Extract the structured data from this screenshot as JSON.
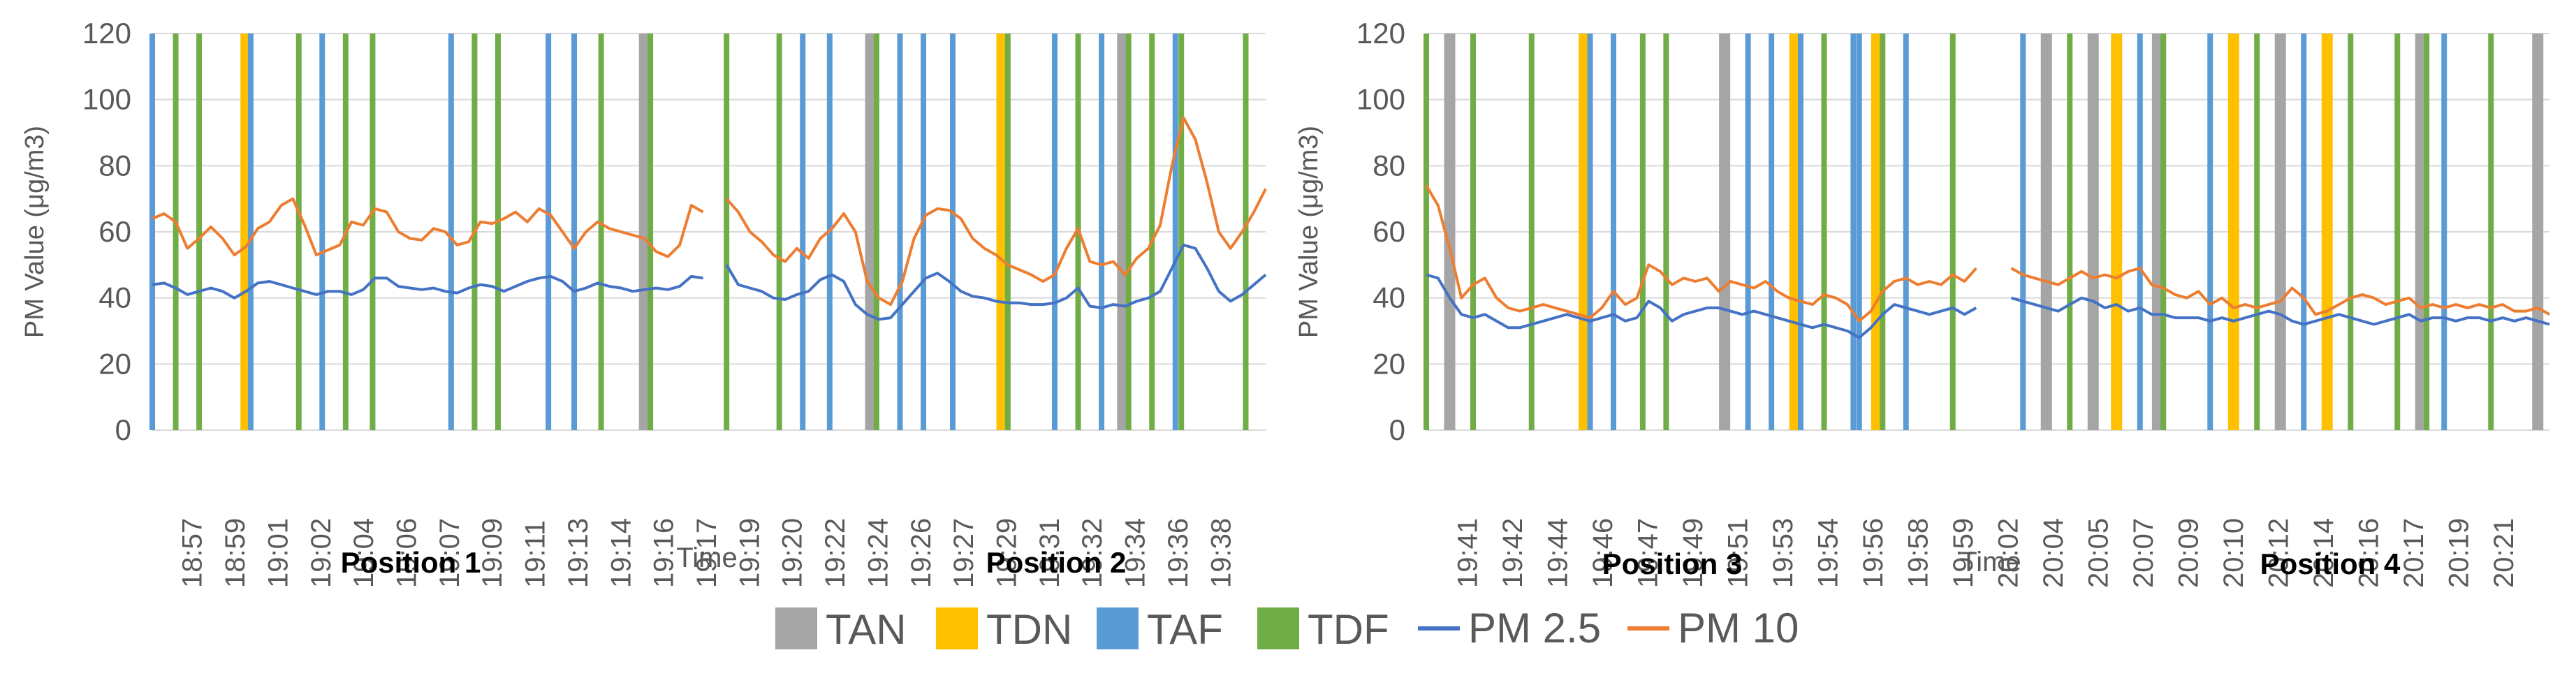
{
  "colors": {
    "TAN": "#a5a5a5",
    "TDN": "#ffc000",
    "TAF": "#5b9bd5",
    "TDF": "#70ad47",
    "PM 2.5": "#4472c4",
    "PM 10": "#ed7d31",
    "grid": "#d9d9d9",
    "text": "#595959"
  },
  "legend": [
    "TAN",
    "TDN",
    "TAF",
    "TDF",
    "PM 2.5",
    "PM 10"
  ],
  "chart_data": [
    {
      "type": "line",
      "ylabel": "PM Value (μg/m3)",
      "xlabel": "Time",
      "ylim": [
        0,
        120
      ],
      "yticks": [
        0,
        20,
        40,
        60,
        80,
        100,
        120
      ],
      "grid": true,
      "x_labels": [
        "18:57",
        "18:59",
        "19:01",
        "19:02",
        "19:04",
        "19:06",
        "19:07",
        "19:09",
        "19:11",
        "19:13",
        "19:14",
        "19:16",
        "19:17",
        "19:19",
        "19:20",
        "19:22",
        "19:24",
        "19:26",
        "19:27",
        "19:29",
        "19:31",
        "19:32",
        "19:34",
        "19:36",
        "19:38"
      ],
      "positions": [
        {
          "label": "Position 1",
          "x_range": [
            0,
            46
          ]
        },
        {
          "label": "Position 2",
          "x_range": [
            47,
            94
          ]
        }
      ],
      "events": [
        {
          "type": "TAF",
          "x": 0
        },
        {
          "type": "TDF",
          "x": 2
        },
        {
          "type": "TDF",
          "x": 4
        },
        {
          "type": "TDN",
          "x": 8
        },
        {
          "type": "TAF",
          "x": 8.4
        },
        {
          "type": "TDF",
          "x": 12.5
        },
        {
          "type": "TAF",
          "x": 14.5
        },
        {
          "type": "TDF",
          "x": 16.5
        },
        {
          "type": "TDF",
          "x": 18.8
        },
        {
          "type": "TAF",
          "x": 25.5
        },
        {
          "type": "TDF",
          "x": 27.5
        },
        {
          "type": "TDF",
          "x": 29.5
        },
        {
          "type": "TAF",
          "x": 33.8
        },
        {
          "type": "TAF",
          "x": 36
        },
        {
          "type": "TDF",
          "x": 38.3
        },
        {
          "type": "TAN",
          "x": 42
        },
        {
          "type": "TDF",
          "x": 42.5
        },
        {
          "type": "TDF",
          "x": 49
        },
        {
          "type": "TDF",
          "x": 53.5
        },
        {
          "type": "TAF",
          "x": 55.5
        },
        {
          "type": "TAF",
          "x": 57.8
        },
        {
          "type": "TAN",
          "x": 61.3
        },
        {
          "type": "TDF",
          "x": 61.8
        },
        {
          "type": "TAF",
          "x": 63.8
        },
        {
          "type": "TAF",
          "x": 65.8
        },
        {
          "type": "TAF",
          "x": 68.3
        },
        {
          "type": "TDN",
          "x": 72.5
        },
        {
          "type": "TDF",
          "x": 73
        },
        {
          "type": "TAF",
          "x": 77
        },
        {
          "type": "TDF",
          "x": 79
        },
        {
          "type": "TAF",
          "x": 81
        },
        {
          "type": "TAN",
          "x": 82.8
        },
        {
          "type": "TDF",
          "x": 83.3
        },
        {
          "type": "TDF",
          "x": 85.3
        },
        {
          "type": "TAF",
          "x": 87.3
        },
        {
          "type": "TDF",
          "x": 87.8
        },
        {
          "type": "TDF",
          "x": 93.3
        }
      ],
      "series": [
        {
          "name": "PM 2.5",
          "values": [
            44,
            44.5,
            43,
            41,
            42,
            43,
            42,
            40,
            42,
            44.5,
            45,
            44,
            43,
            42,
            41,
            42,
            42,
            41,
            42.5,
            46,
            46,
            43.5,
            43,
            42.5,
            43,
            42,
            41.5,
            43,
            44,
            43.5,
            42,
            43.5,
            45,
            46,
            46.5,
            45,
            42,
            43,
            44.5,
            43.5,
            43,
            42,
            42.5,
            43,
            42.5,
            43.5,
            46.5,
            46,
            null,
            50,
            44,
            43,
            42,
            40,
            39.5,
            41,
            42,
            45.5,
            47,
            45,
            38,
            35,
            33.5,
            34,
            38,
            42,
            46,
            47.5,
            45,
            42,
            40.5,
            40,
            39,
            38.5,
            38.5,
            38,
            38,
            38.5,
            40,
            43,
            37.5,
            37,
            38,
            37.5,
            39,
            40,
            42,
            49,
            56,
            55,
            49,
            42,
            39,
            41,
            44,
            47
          ]
        },
        {
          "name": "PM 10",
          "values": [
            64,
            65.5,
            63,
            55,
            58,
            61.5,
            58,
            53,
            55.5,
            61,
            63,
            68,
            70,
            62,
            53,
            54.5,
            56,
            63,
            62,
            67,
            66,
            60,
            58,
            57.5,
            61,
            60,
            56,
            57,
            63,
            62.5,
            64,
            66,
            63,
            67,
            65,
            60,
            55,
            60,
            63,
            61,
            60,
            59,
            58,
            54,
            52.5,
            56,
            68,
            66,
            null,
            70,
            66,
            60,
            57,
            53,
            51,
            55,
            52,
            58,
            61,
            65.5,
            60,
            45,
            40,
            38,
            45,
            58,
            65,
            67,
            66.5,
            64,
            58,
            55,
            53,
            50,
            48.5,
            47,
            45,
            47,
            55,
            61,
            51,
            50,
            51,
            47,
            52,
            55,
            62,
            80,
            94.5,
            88,
            75,
            60,
            55,
            60,
            66,
            73
          ]
        }
      ]
    },
    {
      "type": "line",
      "ylabel": "PM Value (μg/m3)",
      "xlabel": "Time",
      "ylim": [
        0,
        120
      ],
      "yticks": [
        0,
        20,
        40,
        60,
        80,
        100,
        120
      ],
      "grid": true,
      "x_labels": [
        "19:41",
        "19:42",
        "19:44",
        "19:46",
        "19:47",
        "19:49",
        "19:51",
        "19:53",
        "19:54",
        "19:56",
        "19:58",
        "19:59",
        "20:02",
        "20:04",
        "20:05",
        "20:07",
        "20:09",
        "20:10",
        "20:12",
        "20:14",
        "20:16",
        "20:17",
        "20:19",
        "20:21"
      ],
      "positions": [
        {
          "label": "Position 3",
          "x_range": [
            0,
            45
          ]
        },
        {
          "label": "Position 4",
          "x_range": [
            48,
            95
          ]
        }
      ],
      "events": [
        {
          "type": "TDF",
          "x": 0
        },
        {
          "type": "TAN",
          "x": 2
        },
        {
          "type": "TDF",
          "x": 4
        },
        {
          "type": "TDF",
          "x": 9
        },
        {
          "type": "TDN",
          "x": 13.5
        },
        {
          "type": "TAF",
          "x": 14
        },
        {
          "type": "TAF",
          "x": 16
        },
        {
          "type": "TDF",
          "x": 18.5
        },
        {
          "type": "TDF",
          "x": 20.5
        },
        {
          "type": "TAN",
          "x": 25.5
        },
        {
          "type": "TAF",
          "x": 27.5
        },
        {
          "type": "TAF",
          "x": 29.5
        },
        {
          "type": "TDN",
          "x": 31.5
        },
        {
          "type": "TAF",
          "x": 32
        },
        {
          "type": "TDF",
          "x": 34
        },
        {
          "type": "TAF",
          "x": 36.5
        },
        {
          "type": "TAF",
          "x": 37
        },
        {
          "type": "TDN",
          "x": 38.5
        },
        {
          "type": "TDF",
          "x": 39
        },
        {
          "type": "TAF",
          "x": 41
        },
        {
          "type": "TDF",
          "x": 45
        },
        {
          "type": "TAF",
          "x": 51
        },
        {
          "type": "TAN",
          "x": 53
        },
        {
          "type": "TDF",
          "x": 55
        },
        {
          "type": "TAN",
          "x": 57
        },
        {
          "type": "TDN",
          "x": 59
        },
        {
          "type": "TAF",
          "x": 61
        },
        {
          "type": "TAN",
          "x": 62.5
        },
        {
          "type": "TDF",
          "x": 63
        },
        {
          "type": "TAF",
          "x": 67
        },
        {
          "type": "TDN",
          "x": 69
        },
        {
          "type": "TDF",
          "x": 71
        },
        {
          "type": "TAN",
          "x": 73
        },
        {
          "type": "TAF",
          "x": 75
        },
        {
          "type": "TDN",
          "x": 77
        },
        {
          "type": "TDF",
          "x": 79
        },
        {
          "type": "TDF",
          "x": 83
        },
        {
          "type": "TAN",
          "x": 85
        },
        {
          "type": "TDF",
          "x": 85.5
        },
        {
          "type": "TAF",
          "x": 87
        },
        {
          "type": "TDF",
          "x": 91
        },
        {
          "type": "TAN",
          "x": 95
        }
      ],
      "series": [
        {
          "name": "PM 2.5",
          "values": [
            47,
            46,
            40,
            35,
            34,
            35,
            33,
            31,
            31,
            32,
            33,
            34,
            35,
            34,
            33,
            34,
            35,
            33,
            34,
            39,
            37,
            33,
            35,
            36,
            37,
            37,
            36,
            35,
            36,
            35,
            34,
            33,
            32,
            31,
            32,
            31,
            30,
            28,
            31,
            35,
            38,
            37,
            36,
            35,
            36,
            37,
            35,
            37,
            null,
            null,
            40,
            39,
            38,
            37,
            36,
            38,
            40,
            39,
            37,
            38,
            36,
            37,
            35,
            35,
            34,
            34,
            34,
            33,
            34,
            33,
            34,
            35,
            36,
            35,
            33,
            32,
            33,
            34,
            35,
            34,
            33,
            32,
            33,
            34,
            35,
            33,
            34,
            34,
            33,
            34,
            34,
            33,
            34,
            33,
            34,
            33,
            32
          ]
        },
        {
          "name": "PM 10",
          "values": [
            74,
            68,
            55,
            40,
            44,
            46,
            40,
            37,
            36,
            37,
            38,
            37,
            36,
            35,
            34,
            37,
            42,
            38,
            40,
            50,
            48,
            44,
            46,
            45,
            46,
            42,
            45,
            44,
            43,
            45,
            42,
            40,
            39,
            38,
            41,
            40,
            38,
            33,
            36,
            42,
            45,
            46,
            44,
            45,
            44,
            47,
            45,
            49,
            null,
            null,
            49,
            47,
            46,
            45,
            44,
            46,
            48,
            46,
            47,
            46,
            48,
            49,
            44,
            43,
            41,
            40,
            42,
            38,
            40,
            37,
            38,
            37,
            38,
            39,
            43,
            40,
            35,
            36,
            38,
            40,
            41,
            40,
            38,
            39,
            40,
            37,
            38,
            37,
            38,
            37,
            38,
            37,
            38,
            36,
            36,
            37,
            35
          ]
        }
      ]
    }
  ]
}
